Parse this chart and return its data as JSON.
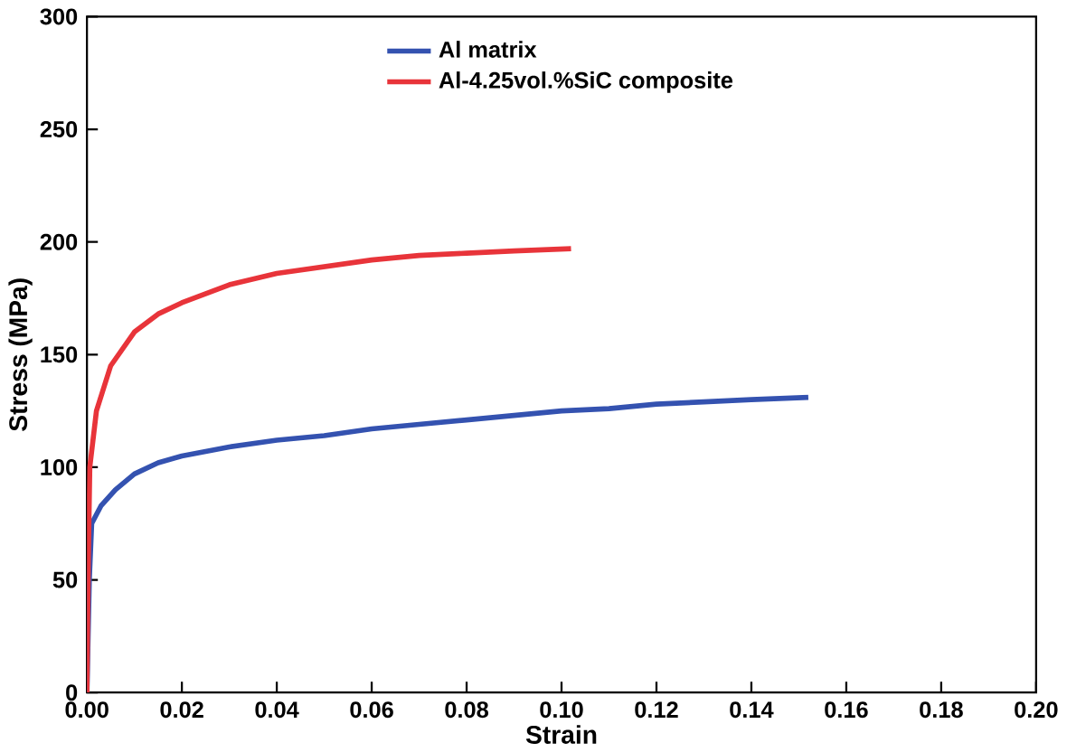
{
  "chart_data": {
    "type": "line",
    "xlabel": "Strain",
    "ylabel": "Stress (MPa)",
    "xlim": [
      0,
      0.2
    ],
    "ylim": [
      0,
      300
    ],
    "xticks": [
      {
        "value": 0,
        "label": "0.00"
      },
      {
        "value": 0.02,
        "label": "0.02"
      },
      {
        "value": 0.04,
        "label": "0.04"
      },
      {
        "value": 0.06,
        "label": "0.06"
      },
      {
        "value": 0.08,
        "label": "0.08"
      },
      {
        "value": 0.1,
        "label": "0.10"
      },
      {
        "value": 0.12,
        "label": "0.12"
      },
      {
        "value": 0.14,
        "label": "0.14"
      },
      {
        "value": 0.16,
        "label": "0.16"
      },
      {
        "value": 0.18,
        "label": "0.18"
      },
      {
        "value": 0.2,
        "label": "0.20"
      }
    ],
    "yticks": [
      0,
      50,
      100,
      150,
      200,
      250,
      300
    ],
    "legend": "top",
    "line_style": "solid",
    "marker": "none",
    "series": [
      {
        "name": "Al matrix",
        "color": "#3452b0",
        "x": [
          0,
          0.0005,
          0.001,
          0.003,
          0.006,
          0.01,
          0.015,
          0.02,
          0.03,
          0.04,
          0.05,
          0.06,
          0.07,
          0.08,
          0.09,
          0.1,
          0.11,
          0.12,
          0.13,
          0.14,
          0.152
        ],
        "values": [
          0,
          50,
          75,
          83,
          90,
          97,
          102,
          105,
          109,
          112,
          114,
          117,
          119,
          121,
          123,
          125,
          126,
          128,
          129,
          130,
          131
        ]
      },
      {
        "name": "Al-4.25vol.%SiC composite",
        "color": "#e8343a",
        "x": [
          0,
          0.0003,
          0.0006,
          0.002,
          0.005,
          0.01,
          0.015,
          0.02,
          0.03,
          0.04,
          0.05,
          0.06,
          0.07,
          0.08,
          0.09,
          0.102
        ],
        "values": [
          0,
          60,
          100,
          125,
          145,
          160,
          168,
          173,
          181,
          186,
          189,
          192,
          194,
          195,
          196,
          197
        ]
      }
    ]
  }
}
